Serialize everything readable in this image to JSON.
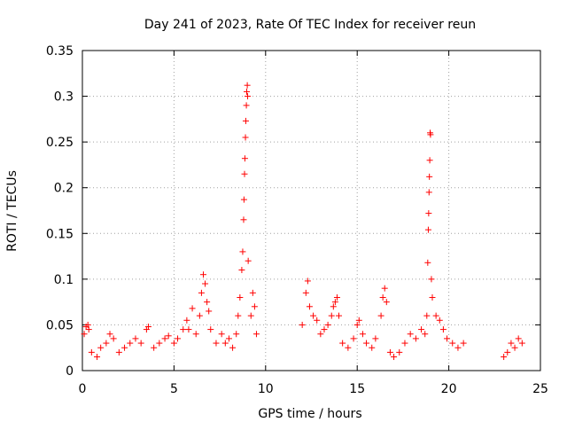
{
  "chart_data": {
    "type": "scatter",
    "title": "Day 241 of 2023, Rate Of TEC Index for receiver reun",
    "xlabel": "GPS time / hours",
    "ylabel": "ROTI / TECUs",
    "xlim": [
      0,
      25
    ],
    "ylim": [
      0,
      0.35
    ],
    "x_ticks": [
      "0",
      "5",
      "10",
      "15",
      "20",
      "25"
    ],
    "y_ticks": [
      "0",
      "0.05",
      "0.1",
      "0.15",
      "0.2",
      "0.25",
      "0.3",
      "0.35"
    ],
    "grid": true,
    "marker": "+",
    "series": [
      {
        "color": "#ff0000",
        "points": [
          [
            0.1,
            0.04
          ],
          [
            0.2,
            0.048
          ],
          [
            0.3,
            0.05
          ],
          [
            0.35,
            0.045
          ],
          [
            0.5,
            0.02
          ],
          [
            0.8,
            0.015
          ],
          [
            1.0,
            0.025
          ],
          [
            1.3,
            0.03
          ],
          [
            1.5,
            0.04
          ],
          [
            1.7,
            0.035
          ],
          [
            2.0,
            0.02
          ],
          [
            2.3,
            0.025
          ],
          [
            2.6,
            0.03
          ],
          [
            2.9,
            0.035
          ],
          [
            3.2,
            0.03
          ],
          [
            3.5,
            0.045
          ],
          [
            3.6,
            0.048
          ],
          [
            3.9,
            0.025
          ],
          [
            4.2,
            0.03
          ],
          [
            4.5,
            0.035
          ],
          [
            4.7,
            0.038
          ],
          [
            5.0,
            0.03
          ],
          [
            5.2,
            0.035
          ],
          [
            5.5,
            0.045
          ],
          [
            5.7,
            0.055
          ],
          [
            5.8,
            0.045
          ],
          [
            6.0,
            0.068
          ],
          [
            6.2,
            0.04
          ],
          [
            6.4,
            0.06
          ],
          [
            6.5,
            0.085
          ],
          [
            6.6,
            0.105
          ],
          [
            6.7,
            0.095
          ],
          [
            6.8,
            0.075
          ],
          [
            6.9,
            0.065
          ],
          [
            7.0,
            0.045
          ],
          [
            7.3,
            0.03
          ],
          [
            7.6,
            0.04
          ],
          [
            7.8,
            0.03
          ],
          [
            8.0,
            0.035
          ],
          [
            8.2,
            0.025
          ],
          [
            8.4,
            0.04
          ],
          [
            8.5,
            0.06
          ],
          [
            8.6,
            0.08
          ],
          [
            8.7,
            0.11
          ],
          [
            8.75,
            0.13
          ],
          [
            8.8,
            0.165
          ],
          [
            8.82,
            0.187
          ],
          [
            8.85,
            0.215
          ],
          [
            8.87,
            0.232
          ],
          [
            8.9,
            0.255
          ],
          [
            8.92,
            0.273
          ],
          [
            8.95,
            0.29
          ],
          [
            8.97,
            0.305
          ],
          [
            9.0,
            0.312
          ],
          [
            9.02,
            0.3
          ],
          [
            9.05,
            0.12
          ],
          [
            9.2,
            0.06
          ],
          [
            9.3,
            0.085
          ],
          [
            9.4,
            0.07
          ],
          [
            9.5,
            0.04
          ],
          [
            12.0,
            0.05
          ],
          [
            12.2,
            0.085
          ],
          [
            12.3,
            0.098
          ],
          [
            12.4,
            0.07
          ],
          [
            12.6,
            0.06
          ],
          [
            12.8,
            0.055
          ],
          [
            13.0,
            0.04
          ],
          [
            13.2,
            0.045
          ],
          [
            13.4,
            0.05
          ],
          [
            13.6,
            0.06
          ],
          [
            13.7,
            0.07
          ],
          [
            13.8,
            0.075
          ],
          [
            13.9,
            0.08
          ],
          [
            14.0,
            0.06
          ],
          [
            14.2,
            0.03
          ],
          [
            14.5,
            0.025
          ],
          [
            14.8,
            0.035
          ],
          [
            15.0,
            0.05
          ],
          [
            15.1,
            0.055
          ],
          [
            15.3,
            0.04
          ],
          [
            15.5,
            0.03
          ],
          [
            15.8,
            0.025
          ],
          [
            16.0,
            0.035
          ],
          [
            16.3,
            0.06
          ],
          [
            16.4,
            0.08
          ],
          [
            16.5,
            0.09
          ],
          [
            16.6,
            0.075
          ],
          [
            16.8,
            0.02
          ],
          [
            17.0,
            0.015
          ],
          [
            17.3,
            0.02
          ],
          [
            17.6,
            0.03
          ],
          [
            17.9,
            0.04
          ],
          [
            18.2,
            0.035
          ],
          [
            18.5,
            0.045
          ],
          [
            18.7,
            0.04
          ],
          [
            18.8,
            0.06
          ],
          [
            18.85,
            0.118
          ],
          [
            18.88,
            0.154
          ],
          [
            18.9,
            0.172
          ],
          [
            18.92,
            0.195
          ],
          [
            18.94,
            0.212
          ],
          [
            18.96,
            0.23
          ],
          [
            18.98,
            0.26
          ],
          [
            19.0,
            0.258
          ],
          [
            19.05,
            0.1
          ],
          [
            19.1,
            0.08
          ],
          [
            19.3,
            0.06
          ],
          [
            19.5,
            0.055
          ],
          [
            19.7,
            0.045
          ],
          [
            19.9,
            0.035
          ],
          [
            20.2,
            0.03
          ],
          [
            20.5,
            0.025
          ],
          [
            20.8,
            0.03
          ],
          [
            23.0,
            0.015
          ],
          [
            23.2,
            0.02
          ],
          [
            23.4,
            0.03
          ],
          [
            23.6,
            0.025
          ],
          [
            23.8,
            0.035
          ],
          [
            24.0,
            0.03
          ]
        ]
      }
    ]
  }
}
